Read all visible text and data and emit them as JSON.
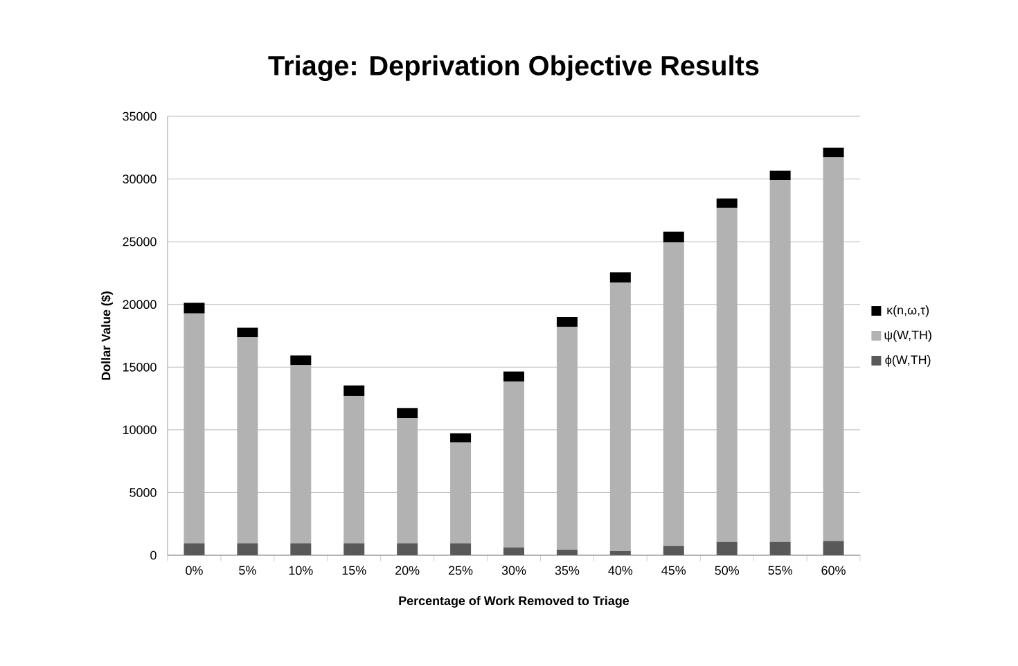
{
  "chart_data": {
    "type": "bar",
    "stacked": true,
    "title": "Triage: Deprivation Objective Results",
    "xlabel": "Percentage of Work Removed to Triage",
    "ylabel": "Dollar Value ($)",
    "categories": [
      "0%",
      "5%",
      "10%",
      "15%",
      "20%",
      "25%",
      "30%",
      "35%",
      "40%",
      "45%",
      "50%",
      "55%",
      "60%"
    ],
    "series": [
      {
        "name": "ϕ(W,TH)",
        "color": "#595959",
        "values": [
          950,
          950,
          950,
          950,
          950,
          950,
          630,
          440,
          330,
          740,
          1070,
          1070,
          1140
        ]
      },
      {
        "name": "ψ(W,TH)",
        "color": "#b2b2b2",
        "values": [
          18330,
          16420,
          14210,
          11750,
          9980,
          8040,
          13210,
          17780,
          21420,
          24210,
          26640,
          28850,
          30580
        ]
      },
      {
        "name": "κ(n,ω,τ)",
        "color": "#000000",
        "values": [
          850,
          770,
          770,
          840,
          810,
          730,
          810,
          770,
          810,
          850,
          740,
          740,
          770
        ]
      }
    ],
    "ylim": [
      0,
      35000
    ],
    "yticks": [
      0,
      5000,
      10000,
      15000,
      20000,
      25000,
      30000,
      35000
    ],
    "grid": "y",
    "legend": "right"
  }
}
